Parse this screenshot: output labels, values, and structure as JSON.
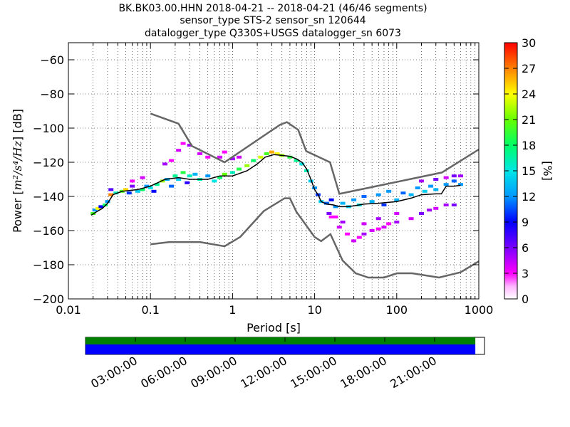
{
  "chart_data": {
    "type": "heatmap",
    "title_lines": [
      "BK.BK03.00.HHN   2018-04-21 -- 2018-04-21  (46/46 segments)",
      "sensor_type STS-2 sensor_sn 120644",
      "datalogger_type Q330S+USGS datalogger_sn 6073"
    ],
    "xlabel": "Period [s]",
    "ylabel_prefix": "Power [",
    "ylabel_units": "m²/s⁴/Hz",
    "ylabel_suffix": "] [dB]",
    "x_scale": "log",
    "xlim": [
      0.01,
      1000
    ],
    "ylim": [
      -200,
      -50
    ],
    "x_ticks": [
      0.01,
      0.1,
      1,
      10,
      100,
      1000
    ],
    "x_tick_labels": [
      "0.01",
      "0.1",
      "1",
      "10",
      "100",
      "1000"
    ],
    "y_ticks": [
      -200,
      -180,
      -160,
      -140,
      -120,
      -100,
      -80,
      -60
    ],
    "y_tick_labels": [
      "−200",
      "−180",
      "−160",
      "−140",
      "−120",
      "−100",
      "−80",
      "−60"
    ],
    "grid": "dotted",
    "colorbar": {
      "label": "[%]",
      "range": [
        0,
        30
      ],
      "ticks": [
        0,
        3,
        6,
        9,
        12,
        15,
        18,
        21,
        24,
        27,
        30
      ],
      "tick_labels": [
        "0",
        "3",
        "6",
        "9",
        "12",
        "15",
        "18",
        "21",
        "24",
        "27",
        "30"
      ]
    },
    "noise_models": [
      {
        "name": "NHNM",
        "x": [
          0.1,
          0.22,
          0.32,
          0.8,
          3.8,
          4.6,
          6.3,
          7.9,
          15.4,
          20,
          354.8,
          1000
        ],
        "y": [
          -91.5,
          -97.4,
          -110.5,
          -120,
          -98,
          -96.5,
          -101,
          -113.5,
          -120,
          -138.5,
          -126,
          -112.5
        ]
      },
      {
        "name": "NLNM",
        "x": [
          0.1,
          0.17,
          0.4,
          0.8,
          1.24,
          2.4,
          4.3,
          5,
          6,
          10,
          12,
          15.6,
          21.9,
          31.6,
          45,
          70,
          101,
          154,
          328,
          600,
          1000
        ],
        "y": [
          -168,
          -166.7,
          -166.7,
          -169.2,
          -163.7,
          -148.6,
          -141.1,
          -141.1,
          -149,
          -163.8,
          -166.2,
          -162.1,
          -177.5,
          -185,
          -187.5,
          -187.5,
          -185,
          -185,
          -187.5,
          -184.4,
          -178
        ]
      }
    ],
    "mode_curve": {
      "x": [
        0.019,
        0.022,
        0.026,
        0.03,
        0.035,
        0.045,
        0.07,
        0.1,
        0.15,
        0.22,
        0.3,
        0.5,
        0.7,
        1,
        1.5,
        2,
        2.5,
        3.2,
        4,
        5,
        6,
        7,
        8,
        9,
        10,
        11,
        12,
        14,
        17,
        20,
        25,
        30,
        40,
        60,
        100,
        150,
        200,
        300,
        350,
        400,
        500,
        600
      ],
      "y": [
        -151,
        -149,
        -147,
        -144,
        -139,
        -137,
        -136,
        -134,
        -130,
        -129,
        -130,
        -130,
        -128,
        -128,
        -125,
        -121,
        -117,
        -115.5,
        -116,
        -116.5,
        -118,
        -120,
        -124,
        -130,
        -136,
        -139,
        -143,
        -144.5,
        -145,
        -146,
        -146,
        -145.5,
        -144.5,
        -144,
        -143,
        -141,
        -139,
        -138.5,
        -138.5,
        -134,
        -134,
        -133.5
      ]
    },
    "psd_cells": [
      {
        "x": 0.02,
        "y": -150,
        "p": 20
      },
      {
        "x": 0.021,
        "y": -148,
        "p": 12
      },
      {
        "x": 0.023,
        "y": -147,
        "p": 24
      },
      {
        "x": 0.025,
        "y": -146,
        "p": 9
      },
      {
        "x": 0.028,
        "y": -145,
        "p": 18
      },
      {
        "x": 0.03,
        "y": -143,
        "p": 12
      },
      {
        "x": 0.033,
        "y": -139,
        "p": 27
      },
      {
        "x": 0.033,
        "y": -136,
        "p": 7
      },
      {
        "x": 0.038,
        "y": -138,
        "p": 16
      },
      {
        "x": 0.045,
        "y": -137,
        "p": 20
      },
      {
        "x": 0.05,
        "y": -136,
        "p": 25
      },
      {
        "x": 0.055,
        "y": -138,
        "p": 10
      },
      {
        "x": 0.06,
        "y": -134,
        "p": 6
      },
      {
        "x": 0.07,
        "y": -137,
        "p": 14
      },
      {
        "x": 0.08,
        "y": -136,
        "p": 18
      },
      {
        "x": 0.09,
        "y": -134,
        "p": 12
      },
      {
        "x": 0.1,
        "y": -135,
        "p": 15
      },
      {
        "x": 0.11,
        "y": -137,
        "p": 9
      },
      {
        "x": 0.12,
        "y": -133,
        "p": 17
      },
      {
        "x": 0.14,
        "y": -131,
        "p": 22
      },
      {
        "x": 0.16,
        "y": -130,
        "p": 13
      },
      {
        "x": 0.18,
        "y": -134,
        "p": 11
      },
      {
        "x": 0.2,
        "y": -128,
        "p": 17
      },
      {
        "x": 0.22,
        "y": -130,
        "p": 14
      },
      {
        "x": 0.25,
        "y": -126,
        "p": 19
      },
      {
        "x": 0.28,
        "y": -132,
        "p": 8
      },
      {
        "x": 0.3,
        "y": -128,
        "p": 16
      },
      {
        "x": 0.35,
        "y": -127,
        "p": 13
      },
      {
        "x": 0.4,
        "y": -130,
        "p": 16
      },
      {
        "x": 0.5,
        "y": -128,
        "p": 12
      },
      {
        "x": 0.6,
        "y": -131,
        "p": 15
      },
      {
        "x": 0.7,
        "y": -129,
        "p": 18
      },
      {
        "x": 0.8,
        "y": -127,
        "p": 21
      },
      {
        "x": 1,
        "y": -126,
        "p": 16
      },
      {
        "x": 1.2,
        "y": -124,
        "p": 19
      },
      {
        "x": 1.5,
        "y": -122,
        "p": 22
      },
      {
        "x": 1.8,
        "y": -119,
        "p": 18
      },
      {
        "x": 2.2,
        "y": -117,
        "p": 23
      },
      {
        "x": 2.6,
        "y": -115,
        "p": 20
      },
      {
        "x": 3,
        "y": -114,
        "p": 26
      },
      {
        "x": 3.5,
        "y": -115,
        "p": 24
      },
      {
        "x": 4,
        "y": -116,
        "p": 22
      },
      {
        "x": 5,
        "y": -117,
        "p": 19
      },
      {
        "x": 6,
        "y": -119,
        "p": 17
      },
      {
        "x": 7,
        "y": -121,
        "p": 15
      },
      {
        "x": 8,
        "y": -125,
        "p": 16
      },
      {
        "x": 9,
        "y": -131,
        "p": 14
      },
      {
        "x": 10,
        "y": -135,
        "p": 12
      },
      {
        "x": 11,
        "y": -139,
        "p": 10
      },
      {
        "x": 12,
        "y": -143,
        "p": 14
      },
      {
        "x": 14,
        "y": -144,
        "p": 11
      },
      {
        "x": 16,
        "y": -142,
        "p": 9
      },
      {
        "x": 18,
        "y": -146,
        "p": 12
      },
      {
        "x": 22,
        "y": -144,
        "p": 13
      },
      {
        "x": 26,
        "y": -146,
        "p": 14
      },
      {
        "x": 30,
        "y": -142,
        "p": 12
      },
      {
        "x": 35,
        "y": -145,
        "p": 15
      },
      {
        "x": 40,
        "y": -140,
        "p": 11
      },
      {
        "x": 50,
        "y": -143,
        "p": 13
      },
      {
        "x": 60,
        "y": -139,
        "p": 12
      },
      {
        "x": 70,
        "y": -145,
        "p": 10
      },
      {
        "x": 80,
        "y": -137,
        "p": 12
      },
      {
        "x": 100,
        "y": -142,
        "p": 13
      },
      {
        "x": 120,
        "y": -138,
        "p": 11
      },
      {
        "x": 150,
        "y": -139,
        "p": 13
      },
      {
        "x": 180,
        "y": -135,
        "p": 12
      },
      {
        "x": 220,
        "y": -137,
        "p": 14
      },
      {
        "x": 260,
        "y": -134,
        "p": 12
      },
      {
        "x": 300,
        "y": -136,
        "p": 13
      },
      {
        "x": 400,
        "y": -133,
        "p": 12
      },
      {
        "x": 500,
        "y": -131,
        "p": 11
      },
      {
        "x": 600,
        "y": -133,
        "p": 12
      },
      {
        "x": 500,
        "y": -128,
        "p": 6
      },
      {
        "x": 600,
        "y": -128,
        "p": 5
      },
      {
        "x": 400,
        "y": -129,
        "p": 4
      },
      {
        "x": 300,
        "y": -130,
        "p": 6
      },
      {
        "x": 200,
        "y": -131,
        "p": 5
      },
      {
        "x": 0.15,
        "y": -121,
        "p": 5
      },
      {
        "x": 0.18,
        "y": -119,
        "p": 3
      },
      {
        "x": 0.22,
        "y": -113,
        "p": 4
      },
      {
        "x": 0.25,
        "y": -109,
        "p": 3
      },
      {
        "x": 0.3,
        "y": -110,
        "p": 5
      },
      {
        "x": 0.4,
        "y": -115,
        "p": 4
      },
      {
        "x": 0.5,
        "y": -117,
        "p": 3
      },
      {
        "x": 0.7,
        "y": -117,
        "p": 4
      },
      {
        "x": 0.8,
        "y": -114,
        "p": 3
      },
      {
        "x": 1,
        "y": -118,
        "p": 5
      },
      {
        "x": 1.2,
        "y": -117,
        "p": 4
      },
      {
        "x": 0.08,
        "y": -129,
        "p": 4
      },
      {
        "x": 0.06,
        "y": -131,
        "p": 3
      },
      {
        "x": 20,
        "y": -158,
        "p": 4
      },
      {
        "x": 25,
        "y": -162,
        "p": 3
      },
      {
        "x": 30,
        "y": -166,
        "p": 4
      },
      {
        "x": 35,
        "y": -164,
        "p": 3
      },
      {
        "x": 40,
        "y": -162,
        "p": 5
      },
      {
        "x": 50,
        "y": -160,
        "p": 4
      },
      {
        "x": 60,
        "y": -159,
        "p": 3
      },
      {
        "x": 70,
        "y": -158,
        "p": 4
      },
      {
        "x": 80,
        "y": -156,
        "p": 3
      },
      {
        "x": 100,
        "y": -155,
        "p": 5
      },
      {
        "x": 150,
        "y": -153,
        "p": 4
      },
      {
        "x": 200,
        "y": -150,
        "p": 6
      },
      {
        "x": 250,
        "y": -148,
        "p": 5
      },
      {
        "x": 300,
        "y": -147,
        "p": 4
      },
      {
        "x": 400,
        "y": -145,
        "p": 5
      },
      {
        "x": 500,
        "y": -145,
        "p": 6
      },
      {
        "x": 18,
        "y": -152,
        "p": 3
      },
      {
        "x": 22,
        "y": -155,
        "p": 5
      },
      {
        "x": 15,
        "y": -150,
        "p": 6
      },
      {
        "x": 16,
        "y": -152,
        "p": 3
      },
      {
        "x": 100,
        "y": -150,
        "p": 4
      },
      {
        "x": 60,
        "y": -153,
        "p": 5
      },
      {
        "x": 40,
        "y": -156,
        "p": 4
      }
    ],
    "timeline": {
      "tick_labels": [
        "03:00:00",
        "06:00:00",
        "09:00:00",
        "12:00:00",
        "15:00:00",
        "18:00:00",
        "21:00:00"
      ],
      "coverage_fraction": 0.977,
      "colors": {
        "data": "#008000",
        "gaps": "#0000ff"
      }
    }
  }
}
